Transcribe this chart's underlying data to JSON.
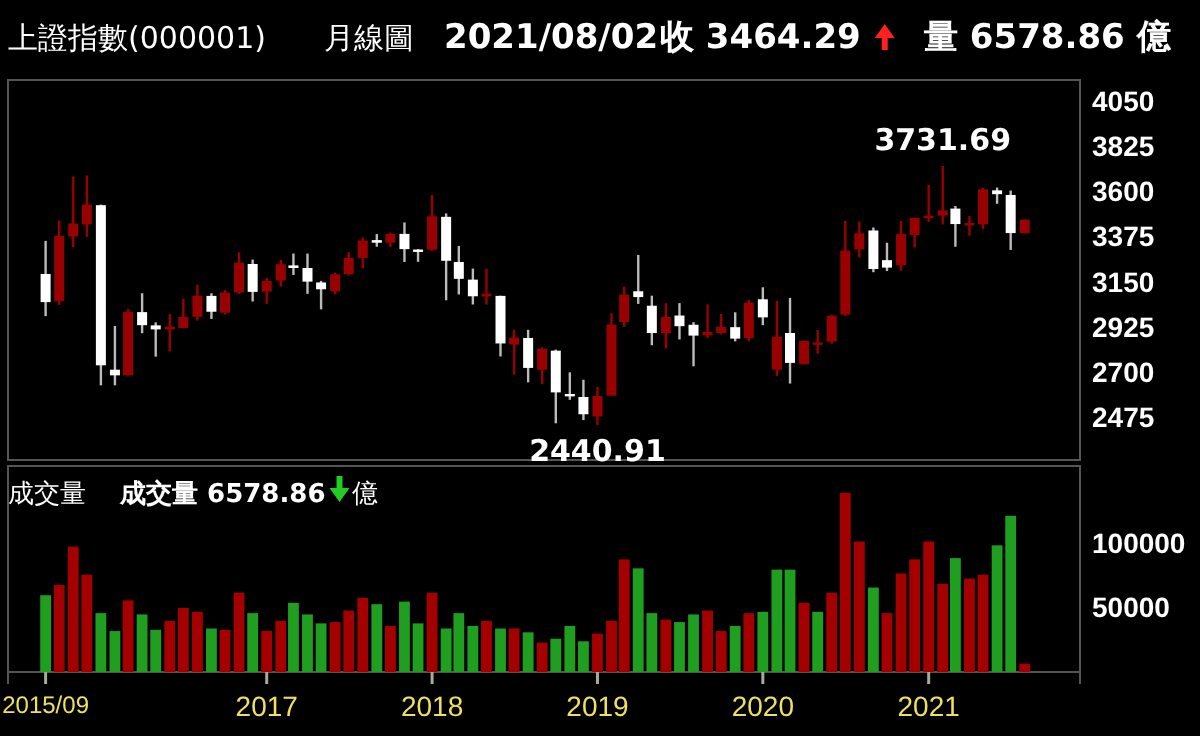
{
  "chart_data": [
    {
      "type": "candlestick",
      "title": "上證指數(000001)",
      "subtitle": "月線圖",
      "annotations": [
        "2021/08/02",
        "收 3464.29",
        "量 6578.86 億",
        {
          "text": "3731.69",
          "x": "2021-02",
          "y": 3731.69
        },
        {
          "text": "2440.91",
          "x": "2019-01",
          "y": 2440.91
        }
      ],
      "x": [
        "2015-09",
        "2015-10",
        "2015-11",
        "2015-12",
        "2016-01",
        "2016-02",
        "2016-03",
        "2016-04",
        "2016-05",
        "2016-06",
        "2016-07",
        "2016-08",
        "2016-09",
        "2016-10",
        "2016-11",
        "2016-12",
        "2017-01",
        "2017-02",
        "2017-03",
        "2017-04",
        "2017-05",
        "2017-06",
        "2017-07",
        "2017-08",
        "2017-09",
        "2017-10",
        "2017-11",
        "2017-12",
        "2018-01",
        "2018-02",
        "2018-03",
        "2018-04",
        "2018-05",
        "2018-06",
        "2018-07",
        "2018-08",
        "2018-09",
        "2018-10",
        "2018-11",
        "2018-12",
        "2019-01",
        "2019-02",
        "2019-03",
        "2019-04",
        "2019-05",
        "2019-06",
        "2019-07",
        "2019-08",
        "2019-09",
        "2019-10",
        "2019-11",
        "2019-12",
        "2020-01",
        "2020-02",
        "2020-03",
        "2020-04",
        "2020-05",
        "2020-06",
        "2020-07",
        "2020-08",
        "2020-09",
        "2020-10",
        "2020-11",
        "2020-12",
        "2021-01",
        "2021-02",
        "2021-03",
        "2021-04",
        "2021-05",
        "2021-06",
        "2021-07",
        "2021-08"
      ],
      "ohlc": [
        [
          3193,
          3358,
          2983,
          3053
        ],
        [
          3057,
          3459,
          3039,
          3383
        ],
        [
          3380,
          3679,
          3327,
          3445
        ],
        [
          3440,
          3684,
          3378,
          3539
        ],
        [
          3536,
          3539,
          2638,
          2738
        ],
        [
          2716,
          2934,
          2638,
          2688
        ],
        [
          2688,
          3018,
          2687,
          3004
        ],
        [
          3003,
          3097,
          2898,
          2938
        ],
        [
          2937,
          2952,
          2781,
          2917
        ],
        [
          2917,
          2994,
          2807,
          2930
        ],
        [
          2924,
          3070,
          2922,
          2979
        ],
        [
          2980,
          3140,
          2961,
          3085
        ],
        [
          3084,
          3097,
          2969,
          3005
        ],
        [
          3000,
          3113,
          2991,
          3100
        ],
        [
          3101,
          3301,
          3094,
          3250
        ],
        [
          3243,
          3265,
          3056,
          3104
        ],
        [
          3105,
          3174,
          3044,
          3159
        ],
        [
          3160,
          3264,
          3131,
          3242
        ],
        [
          3236,
          3295,
          3188,
          3223
        ],
        [
          3223,
          3295,
          3094,
          3155
        ],
        [
          3151,
          3159,
          3017,
          3117
        ],
        [
          3106,
          3200,
          3092,
          3192
        ],
        [
          3192,
          3302,
          3186,
          3273
        ],
        [
          3273,
          3375,
          3221,
          3360
        ],
        [
          3362,
          3392,
          3329,
          3349
        ],
        [
          3349,
          3400,
          3328,
          3393
        ],
        [
          3393,
          3450,
          3253,
          3317
        ],
        [
          3315,
          3317,
          3254,
          3307
        ],
        [
          3314,
          3587,
          3307,
          3481
        ],
        [
          3478,
          3495,
          3062,
          3259
        ],
        [
          3253,
          3333,
          3091,
          3169
        ],
        [
          3165,
          3220,
          3041,
          3082
        ],
        [
          3081,
          3219,
          3041,
          3095
        ],
        [
          3084,
          3085,
          2782,
          2847
        ],
        [
          2842,
          2916,
          2691,
          2876
        ],
        [
          2874,
          2915,
          2653,
          2725
        ],
        [
          2716,
          2827,
          2644,
          2821
        ],
        [
          2811,
          2816,
          2449,
          2603
        ],
        [
          2595,
          2703,
          2566,
          2588
        ],
        [
          2580,
          2666,
          2465,
          2494
        ],
        [
          2483,
          2630,
          2440.91,
          2585
        ],
        [
          2587,
          2997,
          2587,
          2941
        ],
        [
          2954,
          3130,
          2930,
          3091
        ],
        [
          3107,
          3288,
          3044,
          3078
        ],
        [
          3035,
          3085,
          2838,
          2899
        ],
        [
          2899,
          3048,
          2822,
          2979
        ],
        [
          2986,
          3048,
          2867,
          2933
        ],
        [
          2940,
          2953,
          2733,
          2886
        ],
        [
          2887,
          3042,
          2873,
          2905
        ],
        [
          2899,
          2994,
          2892,
          2929
        ],
        [
          2928,
          3002,
          2857,
          2871
        ],
        [
          2874,
          3064,
          2857,
          3050
        ],
        [
          3067,
          3127,
          2938,
          2977
        ],
        [
          2716,
          3058,
          2685,
          2880
        ],
        [
          2899,
          3074,
          2647,
          2750
        ],
        [
          2743,
          2861,
          2743,
          2860
        ],
        [
          2846,
          2914,
          2796,
          2852
        ],
        [
          2856,
          2990,
          2846,
          2985
        ],
        [
          2991,
          3458,
          2984,
          3310
        ],
        [
          3316,
          3454,
          3275,
          3396
        ],
        [
          3410,
          3425,
          3202,
          3218
        ],
        [
          3262,
          3349,
          3208,
          3225
        ],
        [
          3237,
          3457,
          3209,
          3392
        ],
        [
          3388,
          3474,
          3325,
          3473
        ],
        [
          3475,
          3637,
          3453,
          3483
        ],
        [
          3484,
          3731.69,
          3440,
          3509
        ],
        [
          3519,
          3532,
          3329,
          3442
        ],
        [
          3441,
          3482,
          3384,
          3447
        ],
        [
          3441,
          3623,
          3418,
          3615
        ],
        [
          3610,
          3624,
          3543,
          3591
        ],
        [
          3587,
          3609,
          3313,
          3397
        ],
        [
          3397,
          3464.29,
          3395,
          3464.29
        ]
      ],
      "colors": [
        "#ffffff",
        "#990000",
        "#990000",
        "#990000",
        "#ffffff",
        "#ffffff",
        "#990000",
        "#ffffff",
        "#ffffff",
        "#990000",
        "#990000",
        "#990000",
        "#ffffff",
        "#990000",
        "#990000",
        "#ffffff",
        "#990000",
        "#990000",
        "#ffffff",
        "#ffffff",
        "#ffffff",
        "#990000",
        "#990000",
        "#990000",
        "#ffffff",
        "#990000",
        "#ffffff",
        "#ffffff",
        "#990000",
        "#ffffff",
        "#ffffff",
        "#ffffff",
        "#990000",
        "#ffffff",
        "#990000",
        "#ffffff",
        "#990000",
        "#ffffff",
        "#ffffff",
        "#ffffff",
        "#990000",
        "#990000",
        "#990000",
        "#ffffff",
        "#ffffff",
        "#990000",
        "#ffffff",
        "#ffffff",
        "#990000",
        "#990000",
        "#ffffff",
        "#990000",
        "#ffffff",
        "#990000",
        "#ffffff",
        "#990000",
        "#990000",
        "#990000",
        "#990000",
        "#990000",
        "#ffffff",
        "#ffffff",
        "#990000",
        "#990000",
        "#990000",
        "#990000",
        "#ffffff",
        "#990000",
        "#990000",
        "#ffffff",
        "#ffffff",
        "#990000"
      ],
      "ylim": [
        2266,
        4160
      ],
      "yticks": [
        2475,
        2700,
        2925,
        3150,
        3375,
        3600,
        3825,
        4050
      ],
      "tick_labels": "y",
      "xlim": [
        "2015-06-10",
        "2021-12-01"
      ]
    },
    {
      "type": "bar",
      "title": "成交量",
      "annotations": [
        "成交量 6578.86",
        "億"
      ],
      "x": [
        "2015-09",
        "2015-10",
        "2015-11",
        "2015-12",
        "2016-01",
        "2016-02",
        "2016-03",
        "2016-04",
        "2016-05",
        "2016-06",
        "2016-07",
        "2016-08",
        "2016-09",
        "2016-10",
        "2016-11",
        "2016-12",
        "2017-01",
        "2017-02",
        "2017-03",
        "2017-04",
        "2017-05",
        "2017-06",
        "2017-07",
        "2017-08",
        "2017-09",
        "2017-10",
        "2017-11",
        "2017-12",
        "2018-01",
        "2018-02",
        "2018-03",
        "2018-04",
        "2018-05",
        "2018-06",
        "2018-07",
        "2018-08",
        "2018-09",
        "2018-10",
        "2018-11",
        "2018-12",
        "2019-01",
        "2019-02",
        "2019-03",
        "2019-04",
        "2019-05",
        "2019-06",
        "2019-07",
        "2019-08",
        "2019-09",
        "2019-10",
        "2019-11",
        "2019-12",
        "2020-01",
        "2020-02",
        "2020-03",
        "2020-04",
        "2020-05",
        "2020-06",
        "2020-07",
        "2020-08",
        "2020-09",
        "2020-10",
        "2020-11",
        "2020-12",
        "2021-01",
        "2021-02",
        "2021-03",
        "2021-04",
        "2021-05",
        "2021-06",
        "2021-07",
        "2021-08"
      ],
      "values": [
        60000,
        68000,
        98000,
        76000,
        46000,
        32000,
        56000,
        45000,
        33000,
        40000,
        50000,
        47000,
        34000,
        33000,
        62000,
        46000,
        32000,
        40000,
        54000,
        45000,
        38000,
        39000,
        48000,
        58000,
        53000,
        36000,
        55000,
        38000,
        62000,
        34000,
        46000,
        36000,
        40000,
        34000,
        34000,
        31000,
        23000,
        26000,
        36000,
        24000,
        30000,
        40000,
        88000,
        81000,
        46000,
        41000,
        39000,
        45000,
        48000,
        32000,
        36000,
        46000,
        47000,
        80000,
        80000,
        54000,
        47000,
        62000,
        140000,
        102000,
        66000,
        46000,
        77000,
        88000,
        102000,
        69000,
        89000,
        73000,
        76000,
        99000,
        122000,
        6578.86
      ],
      "colors": [
        "#1f9e1f",
        "#a50000",
        "#a50000",
        "#a50000",
        "#1f9e1f",
        "#1f9e1f",
        "#a50000",
        "#1f9e1f",
        "#1f9e1f",
        "#a50000",
        "#a50000",
        "#a50000",
        "#1f9e1f",
        "#a50000",
        "#a50000",
        "#1f9e1f",
        "#a50000",
        "#a50000",
        "#1f9e1f",
        "#1f9e1f",
        "#1f9e1f",
        "#a50000",
        "#a50000",
        "#a50000",
        "#1f9e1f",
        "#a50000",
        "#1f9e1f",
        "#1f9e1f",
        "#a50000",
        "#1f9e1f",
        "#1f9e1f",
        "#1f9e1f",
        "#a50000",
        "#1f9e1f",
        "#a50000",
        "#1f9e1f",
        "#a50000",
        "#1f9e1f",
        "#1f9e1f",
        "#1f9e1f",
        "#a50000",
        "#a50000",
        "#a50000",
        "#1f9e1f",
        "#1f9e1f",
        "#a50000",
        "#1f9e1f",
        "#1f9e1f",
        "#a50000",
        "#a50000",
        "#1f9e1f",
        "#a50000",
        "#1f9e1f",
        "#1f9e1f",
        "#1f9e1f",
        "#a50000",
        "#1f9e1f",
        "#a50000",
        "#a50000",
        "#a50000",
        "#1f9e1f",
        "#a50000",
        "#a50000",
        "#a50000",
        "#a50000",
        "#a50000",
        "#1f9e1f",
        "#a50000",
        "#a50000",
        "#1f9e1f",
        "#1f9e1f",
        "#a50000"
      ],
      "xlim": [
        "2015-06-10",
        "2021-12-01"
      ],
      "xticks": [
        {
          "value": "2015-09",
          "label": "2015/09"
        },
        {
          "value": "2017-01",
          "label": "2017"
        },
        {
          "value": "2018-01",
          "label": "2018"
        },
        {
          "value": "2019-01",
          "label": "2019"
        },
        {
          "value": "2020-01",
          "label": "2020"
        },
        {
          "value": "2021-01",
          "label": "2021"
        }
      ],
      "ylim": [
        0,
        161000
      ],
      "yticks": [
        50000,
        100000
      ]
    }
  ]
}
